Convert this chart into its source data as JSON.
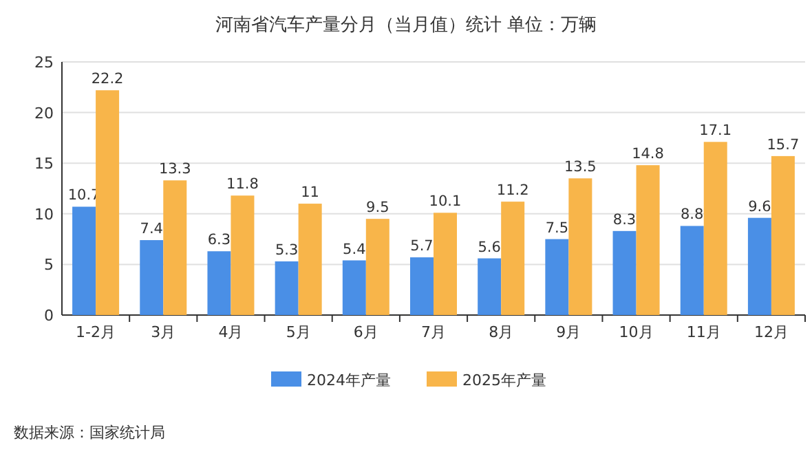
{
  "chart_data": {
    "type": "bar",
    "title": "河南省汽车产量分月（当月值）统计  单位：万辆",
    "categories": [
      "1-2月",
      "3月",
      "4月",
      "5月",
      "6月",
      "7月",
      "8月",
      "9月",
      "10月",
      "11月",
      "12月"
    ],
    "series": [
      {
        "name": "2024年产量",
        "color": "#4a8fe6",
        "values": [
          10.7,
          7.4,
          6.3,
          5.3,
          5.4,
          5.7,
          5.6,
          7.5,
          8.3,
          8.8,
          9.6
        ]
      },
      {
        "name": "2025年产量",
        "color": "#f8b54a",
        "values": [
          22.2,
          13.3,
          11.8,
          11,
          9.5,
          10.1,
          11.2,
          13.5,
          14.8,
          17.1,
          15.7
        ]
      }
    ],
    "ylim": [
      0,
      25
    ],
    "yticks": [
      0,
      5,
      10,
      15,
      20,
      25
    ],
    "grid": "y",
    "legend": "bottom",
    "data_labels": true,
    "annotations": [
      "数据来源：国家统计局"
    ]
  }
}
